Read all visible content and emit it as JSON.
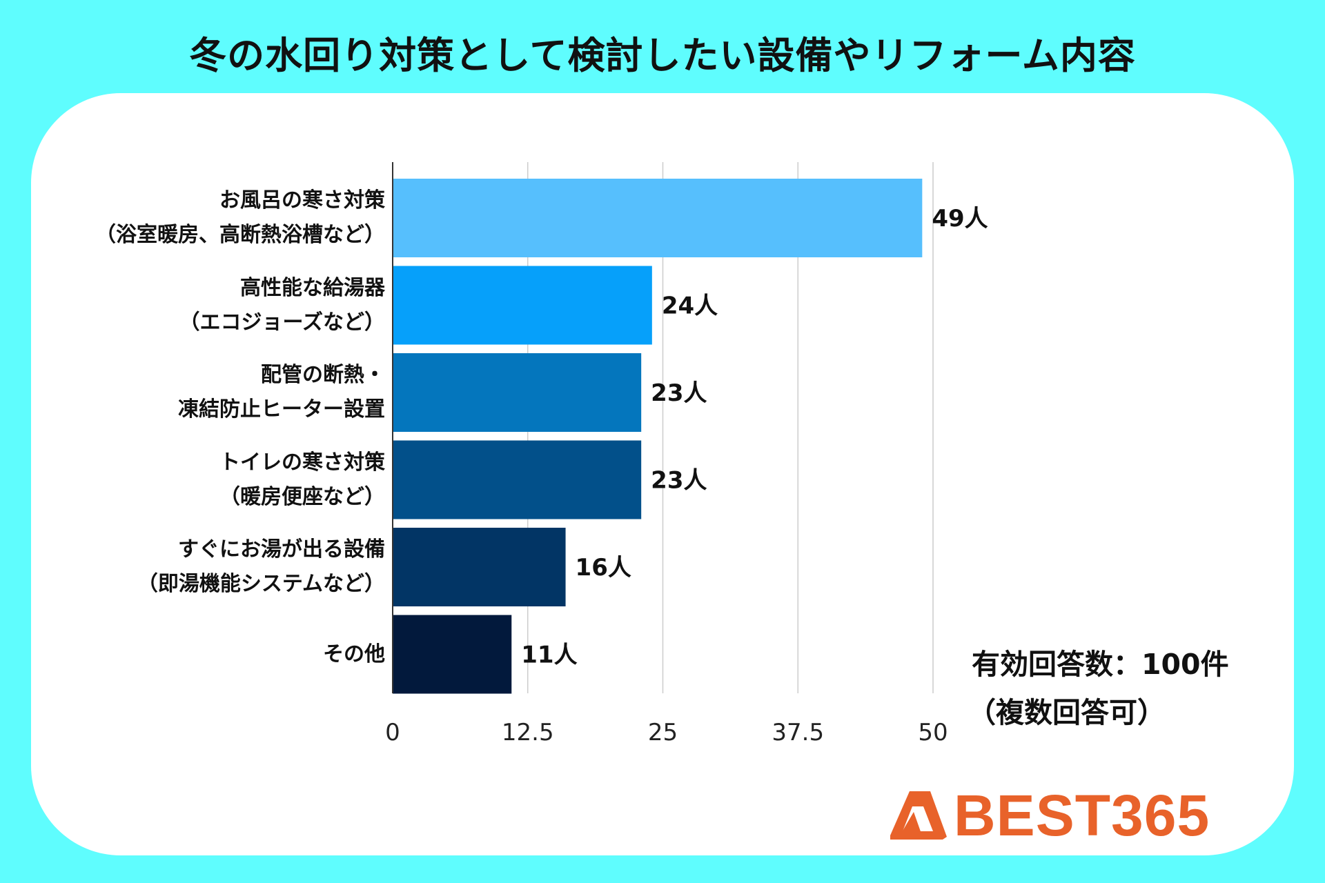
{
  "chart_data": {
    "type": "bar",
    "orientation": "horizontal",
    "title": "冬の水回り対策として検討したい設備やリフォーム内容",
    "categories": [
      [
        "お風呂の寒さ対策",
        "（浴室暖房、高断熱浴槽など）"
      ],
      [
        "高性能な給湯器",
        "（エコジョーズなど）"
      ],
      [
        "配管の断熱・",
        "凍結防止ヒーター設置"
      ],
      [
        "トイレの寒さ対策",
        "（暖房便座など）"
      ],
      [
        "すぐにお湯が出る設備",
        "（即湯機能システムなど）"
      ],
      [
        "その他"
      ]
    ],
    "values": [
      49,
      24,
      23,
      23,
      16,
      11
    ],
    "value_labels": [
      "49人",
      "24人",
      "23人",
      "23人",
      "16人",
      "11人"
    ],
    "bar_colors": [
      "#56bffd",
      "#06a0fa",
      "#0476bd",
      "#02508a",
      "#023565",
      "#02193c"
    ],
    "xlim": [
      0,
      50
    ],
    "xticks": [
      "0",
      "12.5",
      "25",
      "37.5",
      "50"
    ],
    "grid": true,
    "annotation": [
      "有効回答数：100件",
      "（複数回答可）"
    ]
  },
  "brand": {
    "name": "BEST365",
    "color": "#e8622a"
  },
  "colors": {
    "background": "#5ffdfe",
    "card": "#ffffff",
    "grid": "#cccccc"
  }
}
